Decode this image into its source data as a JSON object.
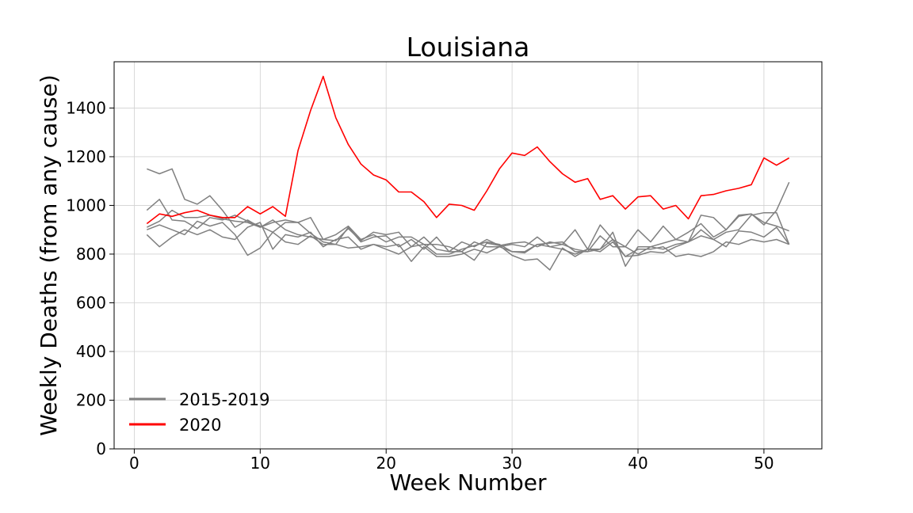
{
  "chart_data": {
    "type": "line",
    "title": "Louisiana",
    "xlabel": "Week Number",
    "ylabel": "Weekly Deaths (from any cause)",
    "xlim": [
      -1.6,
      54.6
    ],
    "ylim": [
      0,
      1590
    ],
    "xticks": [
      0,
      10,
      20,
      30,
      40,
      50
    ],
    "yticks": [
      0,
      200,
      400,
      600,
      800,
      1000,
      1200,
      1400
    ],
    "grid": true,
    "legend_position": "lower-left",
    "colors": {
      "baseline": "#808080",
      "current": "#ff0000"
    },
    "x": [
      1,
      2,
      3,
      4,
      5,
      6,
      7,
      8,
      9,
      10,
      11,
      12,
      13,
      14,
      15,
      16,
      17,
      18,
      19,
      20,
      21,
      22,
      23,
      24,
      25,
      26,
      27,
      28,
      29,
      30,
      31,
      32,
      33,
      34,
      35,
      36,
      37,
      38,
      39,
      40,
      41,
      42,
      43,
      44,
      45,
      46,
      47,
      48,
      49,
      50,
      51,
      52
    ],
    "series": [
      {
        "name": "2015-2019",
        "group": "baseline",
        "values": [
          1150,
          1130,
          1150,
          1025,
          1005,
          1040,
          980,
          910,
          940,
          910,
          930,
          940,
          930,
          950,
          860,
          855,
          905,
          855,
          890,
          880,
          890,
          830,
          870,
          820,
          810,
          850,
          830,
          860,
          835,
          845,
          850,
          830,
          850,
          840,
          900,
          820,
          920,
          860,
          830,
          900,
          850,
          915,
          860,
          850,
          960,
          950,
          900,
          960,
          965,
          920,
          980,
          1095
        ]
      },
      {
        "name": "",
        "group": "baseline",
        "values": [
          980,
          1025,
          940,
          935,
          905,
          950,
          940,
          960,
          935,
          915,
          890,
          930,
          930,
          885,
          850,
          840,
          910,
          850,
          870,
          875,
          830,
          860,
          820,
          870,
          810,
          810,
          850,
          830,
          830,
          810,
          810,
          840,
          830,
          840,
          820,
          810,
          875,
          830,
          830,
          800,
          830,
          845,
          860,
          890,
          925,
          870,
          900,
          955,
          965,
          930,
          915,
          895
        ]
      },
      {
        "name": "",
        "group": "baseline",
        "values": [
          910,
          935,
          980,
          950,
          950,
          960,
          945,
          935,
          930,
          910,
          940,
          900,
          880,
          870,
          860,
          880,
          915,
          860,
          880,
          850,
          870,
          870,
          840,
          800,
          800,
          820,
          835,
          850,
          840,
          810,
          805,
          840,
          845,
          850,
          810,
          810,
          820,
          890,
          750,
          830,
          830,
          820,
          840,
          850,
          900,
          860,
          890,
          900,
          960,
          970,
          970,
          840
        ]
      },
      {
        "name": "",
        "group": "baseline",
        "values": [
          900,
          920,
          900,
          880,
          935,
          915,
          930,
          880,
          795,
          825,
          890,
          850,
          840,
          875,
          840,
          840,
          825,
          830,
          840,
          820,
          800,
          830,
          840,
          840,
          830,
          810,
          775,
          845,
          835,
          795,
          775,
          780,
          735,
          825,
          790,
          820,
          820,
          860,
          790,
          795,
          810,
          805,
          830,
          850,
          875,
          860,
          830,
          895,
          890,
          870,
          910,
          840
        ]
      },
      {
        "name": "",
        "group": "baseline",
        "values": [
          880,
          830,
          870,
          900,
          880,
          900,
          870,
          860,
          910,
          930,
          820,
          880,
          870,
          890,
          830,
          860,
          870,
          820,
          840,
          830,
          840,
          770,
          830,
          790,
          790,
          800,
          820,
          805,
          830,
          840,
          830,
          870,
          830,
          820,
          800,
          820,
          810,
          850,
          790,
          820,
          820,
          830,
          790,
          800,
          790,
          810,
          850,
          840,
          860,
          850,
          860,
          840
        ]
      },
      {
        "name": "2020",
        "group": "current",
        "values": [
          925,
          965,
          955,
          970,
          980,
          960,
          950,
          950,
          995,
          965,
          995,
          955,
          1225,
          1390,
          1530,
          1360,
          1250,
          1170,
          1125,
          1105,
          1055,
          1055,
          1015,
          950,
          1005,
          1000,
          980,
          1060,
          1150,
          1215,
          1205,
          1240,
          1180,
          1130,
          1095,
          1110,
          1025,
          1040,
          985,
          1035,
          1040,
          985,
          1000,
          945,
          1040,
          1045,
          1060,
          1070,
          1085,
          1195,
          1165,
          1195
        ]
      }
    ],
    "legend": [
      "2015-2019",
      "2020"
    ]
  }
}
